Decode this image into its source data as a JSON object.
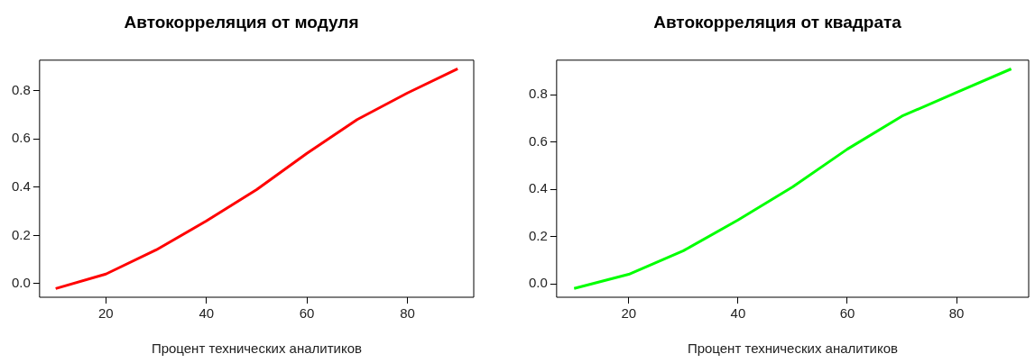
{
  "chart_data": [
    {
      "type": "line",
      "title": "Автокорреляция от модуля",
      "xlabel": "Процент технических аналитиков",
      "x": [
        10,
        20,
        30,
        40,
        50,
        60,
        70,
        80,
        90
      ],
      "values": [
        -0.02,
        0.04,
        0.14,
        0.26,
        0.39,
        0.54,
        0.68,
        0.79,
        0.89
      ],
      "color": "#ff0000",
      "xlim": [
        6.8,
        93.2
      ],
      "ylim": [
        -0.056,
        0.926
      ],
      "xticks": [
        20,
        40,
        60,
        80
      ],
      "yticks": [
        {
          "value": 0,
          "label": "0.0"
        },
        0.2,
        0.4,
        0.6,
        0.8
      ]
    },
    {
      "type": "line",
      "title": "Автокорреляция от квадрата",
      "xlabel": "Процент технических аналитиков",
      "x": [
        10,
        20,
        30,
        40,
        50,
        60,
        70,
        80,
        90
      ],
      "values": [
        -0.02,
        0.04,
        0.14,
        0.27,
        0.41,
        0.57,
        0.71,
        0.81,
        0.91
      ],
      "color": "#00ff00",
      "xlim": [
        6.8,
        93.2
      ],
      "ylim": [
        -0.057,
        0.947
      ],
      "xticks": [
        20,
        40,
        60,
        80
      ],
      "yticks": [
        {
          "value": 0,
          "label": "0.0"
        },
        0.2,
        0.4,
        0.6,
        0.8
      ]
    }
  ]
}
